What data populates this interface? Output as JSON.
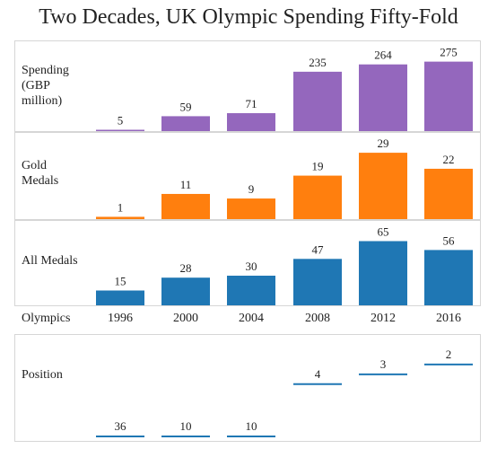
{
  "title": "Two Decades, UK Olympic Spending Fifty-Fold",
  "colors": {
    "spending": "#9467bd",
    "gold": "#ff7f0e",
    "all": "#1f77b4",
    "position": "#1f77b4",
    "border": "#d6d6d6"
  },
  "chart_data": {
    "type": "bar",
    "x_header": "Olympics",
    "categories": [
      "1996",
      "2000",
      "2004",
      "2008",
      "2012",
      "2016"
    ],
    "rows": [
      {
        "label_lines": [
          "Spending",
          "(GBP",
          "million)"
        ],
        "color_key": "spending",
        "kind": "bar",
        "values": [
          5,
          59,
          71,
          235,
          264,
          275
        ],
        "ylim": [
          0,
          295
        ]
      },
      {
        "label_lines": [
          "Gold",
          "Medals"
        ],
        "color_key": "gold",
        "kind": "bar",
        "values": [
          1,
          11,
          9,
          19,
          29,
          22
        ],
        "ylim": [
          0,
          31
        ]
      },
      {
        "label_lines": [
          "All Medals"
        ],
        "color_key": "all",
        "kind": "bar",
        "values": [
          15,
          28,
          30,
          47,
          65,
          56
        ],
        "ylim": [
          0,
          70
        ]
      },
      {
        "label_lines": [
          "Position"
        ],
        "color_key": "position",
        "kind": "rank",
        "values": [
          36,
          10,
          10,
          4,
          3,
          2
        ]
      }
    ]
  }
}
